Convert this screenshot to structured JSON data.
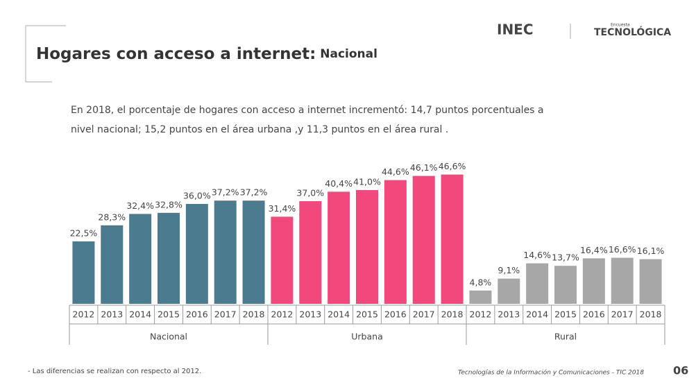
{
  "header": {
    "title": "Hogares con acceso a internet:",
    "subtitle": "Nacional",
    "logo": "INEC",
    "logo_small": "Encuesta",
    "logo_brand": "TECNOLÓGICA"
  },
  "paragraph": [
    "En 2018, el porcentaje de hogares con acceso a internet incrementó: 14,7 puntos porcentuales a",
    "nivel nacional; 15,2 puntos en el área urbana ,y 11,3 puntos en el área rural ."
  ],
  "chart_data": {
    "type": "bar",
    "groups": [
      {
        "name": "Nacional",
        "color": "#4b7b8e",
        "categories": [
          "2012",
          "2013",
          "2014",
          "2015",
          "2016",
          "2017",
          "2018"
        ],
        "values": [
          22.5,
          28.3,
          32.4,
          32.8,
          36.0,
          37.2,
          37.2
        ],
        "value_labels": [
          "22,5%",
          "28,3%",
          "32,4%",
          "32,8%",
          "36,0%",
          "37,2%",
          "37,2%"
        ]
      },
      {
        "name": "Urbana",
        "color": "#f2487b",
        "categories": [
          "2012",
          "2013",
          "2014",
          "2015",
          "2016",
          "2017",
          "2018"
        ],
        "values": [
          31.4,
          37.0,
          40.4,
          41.0,
          44.6,
          46.1,
          46.6
        ],
        "value_labels": [
          "31,4%",
          "37,0%",
          "40,4%",
          "41,0%",
          "44,6%",
          "46,1%",
          "46,6%"
        ]
      },
      {
        "name": "Rural",
        "color": "#a7a7a7",
        "categories": [
          "2012",
          "2013",
          "2014",
          "2015",
          "2016",
          "2017",
          "2018"
        ],
        "values": [
          4.8,
          9.1,
          14.6,
          13.7,
          16.4,
          16.6,
          16.1
        ],
        "value_labels": [
          "4,8%",
          "9,1%",
          "14,6%",
          "13,7%",
          "16,4%",
          "16,6%",
          "16,1%"
        ]
      }
    ]
  },
  "footer": {
    "note": "- Las diferencias se realizan con respecto al  2012.",
    "source": "Tecnologías de la Información y Comunicaciones - TIC 2018",
    "page": "06"
  }
}
